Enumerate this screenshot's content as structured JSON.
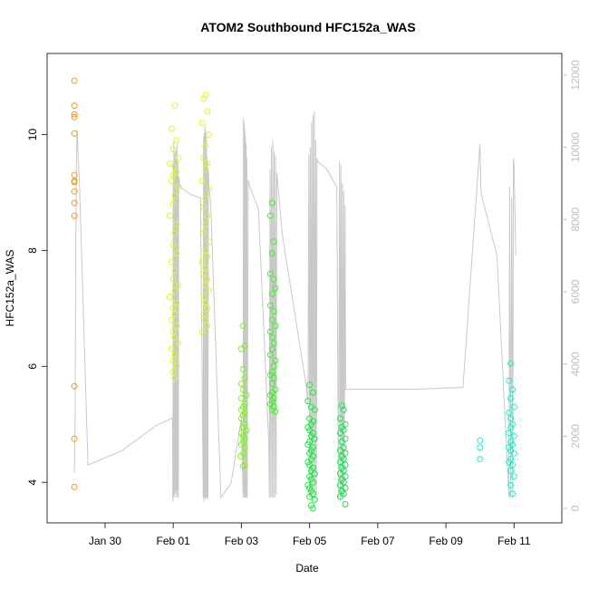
{
  "chart_data": {
    "type": "scatter",
    "title": "ATOM2 Southbound HFC152a_WAS",
    "xlabel": "Date",
    "ylabel": "HFC152a_WAS",
    "x_ticks": [
      "Jan 30",
      "Feb 01",
      "Feb 03",
      "Feb 05",
      "Feb 07",
      "Feb 09",
      "Feb 11"
    ],
    "x_tick_days": [
      30,
      32,
      34,
      36,
      38,
      40,
      42
    ],
    "xlim_days": [
      28.3,
      43.4
    ],
    "y_ticks": [
      "4",
      "6",
      "8",
      "10"
    ],
    "y_tick_values": [
      4,
      6,
      8,
      10
    ],
    "ylim": [
      3.3,
      11.4
    ],
    "y2_ticks": [
      "0",
      "2000",
      "4000",
      "6000",
      "8000",
      "10000",
      "12000"
    ],
    "y2_tick_values": [
      0,
      2000,
      4000,
      6000,
      8000,
      10000,
      12000
    ],
    "y2lim": [
      -400,
      12600
    ],
    "grid": false,
    "colors": {
      "altitude_line": "#c8c8c8",
      "axis": "#333333",
      "right_axis": "#c0c0c0"
    },
    "series": [
      {
        "color": "#f39a1e",
        "x": [
          29.1,
          29.1,
          29.1,
          29.1,
          29.1,
          29.1,
          29.1,
          29.1,
          29.1,
          29.1,
          29.1,
          29.1,
          29.1,
          29.1
        ],
        "y": [
          10.93,
          10.5,
          10.35,
          10.3,
          10.02,
          9.3,
          9.2,
          9.18,
          9.02,
          8.82,
          8.6,
          5.66,
          4.75,
          3.92
        ]
      },
      {
        "color": "#e3f526",
        "x": [
          32.05,
          31.95,
          32.1,
          32.0,
          32.15,
          31.9,
          32.05,
          32.1,
          32.0,
          31.95,
          32.15,
          32.05,
          32.0,
          31.9,
          32.1,
          32.05,
          32.0,
          32.1,
          31.95,
          32.05,
          32.0,
          32.15,
          32.05,
          31.9,
          32.1,
          32.0,
          32.05,
          31.95,
          32.1,
          32.0,
          32.05,
          32.15,
          31.95,
          32.05,
          32.0,
          32.1,
          32.0,
          32.05,
          32.95,
          32.9,
          33.0,
          32.85,
          33.05,
          32.95,
          32.9,
          33.0,
          32.95,
          32.85,
          33.05,
          32.95,
          32.9,
          33.0,
          32.95,
          32.9,
          33.05,
          32.95,
          33.0,
          32.85,
          32.95,
          32.9,
          33.0,
          32.95,
          33.05,
          32.9,
          32.95,
          33.0,
          32.9,
          32.95,
          33.0,
          32.85
        ],
        "y": [
          10.5,
          10.1,
          9.9,
          9.75,
          9.6,
          9.5,
          9.45,
          9.35,
          9.3,
          9.2,
          9.1,
          8.95,
          8.8,
          8.6,
          8.45,
          8.3,
          8.1,
          7.95,
          7.8,
          7.65,
          7.5,
          7.4,
          7.3,
          7.2,
          7.1,
          7.0,
          6.9,
          6.8,
          6.7,
          6.6,
          6.5,
          6.4,
          6.3,
          6.2,
          6.1,
          6.0,
          5.9,
          5.8,
          10.68,
          10.62,
          10.4,
          10.2,
          10.0,
          9.8,
          9.6,
          9.5,
          9.4,
          9.2,
          9.05,
          8.9,
          8.75,
          8.6,
          8.45,
          8.3,
          8.15,
          8.0,
          7.9,
          7.8,
          7.7,
          7.6,
          7.5,
          7.4,
          7.3,
          7.2,
          7.1,
          7.0,
          6.9,
          6.8,
          6.7,
          6.6
        ]
      },
      {
        "color": "#7cf51e",
        "x": [
          34.05,
          34.1,
          34.0,
          34.05,
          34.1,
          34.0,
          34.05,
          34.15,
          34.0,
          34.1,
          34.05,
          34.0,
          34.1,
          34.05,
          34.0,
          34.1,
          34.05,
          34.15,
          34.0,
          34.05,
          34.1,
          34.05,
          34.0,
          34.1,
          34.05,
          33.98,
          34.1,
          34.05
        ],
        "y": [
          6.7,
          6.35,
          6.3,
          5.95,
          5.8,
          5.7,
          5.6,
          5.5,
          5.45,
          5.35,
          5.3,
          5.25,
          5.2,
          5.15,
          5.1,
          5.0,
          4.95,
          4.9,
          4.85,
          4.8,
          4.75,
          4.7,
          4.65,
          4.6,
          4.5,
          4.45,
          4.3,
          4.28
        ]
      },
      {
        "color": "#41f22a",
        "x": [
          34.9,
          34.85,
          34.95,
          34.9,
          34.85,
          34.95,
          35.0,
          34.9,
          34.85,
          34.95,
          34.9,
          35.0,
          34.85,
          34.9,
          34.95,
          34.9,
          34.85,
          35.0,
          34.95,
          34.9,
          34.85,
          34.95,
          34.9,
          35.0,
          34.9,
          34.85,
          34.95,
          34.9,
          34.85,
          34.95,
          34.9,
          35.0
        ],
        "y": [
          8.82,
          8.6,
          8.15,
          7.95,
          7.6,
          7.5,
          7.35,
          7.25,
          7.05,
          6.95,
          6.8,
          6.7,
          6.6,
          6.5,
          6.4,
          6.3,
          6.2,
          6.1,
          6.0,
          5.9,
          5.85,
          5.8,
          5.7,
          5.6,
          5.55,
          5.5,
          5.45,
          5.4,
          5.35,
          5.3,
          5.25,
          5.22
        ]
      },
      {
        "color": "#1fe544",
        "x": [
          36.0,
          36.1,
          35.95,
          36.05,
          36.15,
          36.0,
          36.1,
          36.05,
          35.95,
          36.0,
          36.1,
          36.05,
          36.15,
          36.0,
          35.95,
          36.1,
          36.05,
          36.0,
          36.1,
          36.05,
          35.95,
          36.0,
          36.1,
          36.05,
          36.15,
          36.0,
          36.05,
          36.1,
          35.95,
          36.0,
          36.05,
          36.1,
          36.0,
          36.15,
          36.05,
          36.1
        ],
        "y": [
          5.68,
          5.55,
          5.4,
          5.3,
          5.25,
          5.1,
          5.05,
          5.0,
          4.95,
          4.9,
          4.85,
          4.8,
          4.75,
          4.7,
          4.65,
          4.6,
          4.55,
          4.5,
          4.45,
          4.4,
          4.35,
          4.3,
          4.25,
          4.2,
          4.15,
          4.1,
          4.05,
          4.0,
          3.95,
          3.9,
          3.85,
          3.8,
          3.75,
          3.7,
          3.6,
          3.55
        ]
      },
      {
        "color": "#1fe057",
        "x": [
          36.95,
          37.0,
          36.9,
          37.05,
          36.95,
          37.0,
          36.9,
          37.05,
          36.95,
          37.0,
          36.9,
          37.05,
          36.95,
          37.0,
          36.9,
          37.05,
          36.95,
          37.0,
          36.9,
          37.05,
          36.95,
          37.0,
          36.9,
          37.05,
          36.95,
          37.0,
          36.9,
          37.05
        ],
        "y": [
          5.32,
          5.25,
          5.1,
          5.0,
          4.95,
          4.9,
          4.85,
          4.75,
          4.7,
          4.6,
          4.55,
          4.5,
          4.45,
          4.4,
          4.35,
          4.3,
          4.25,
          4.2,
          4.15,
          4.1,
          4.05,
          4.0,
          3.95,
          3.9,
          3.85,
          3.8,
          3.75,
          3.62
        ]
      },
      {
        "color": "#23ecc6",
        "x": [
          41.0,
          41.0,
          41.0,
          41.9,
          41.85,
          41.95,
          41.9,
          42.0,
          41.85,
          41.9,
          41.95,
          41.9,
          41.85,
          42.0,
          41.9,
          41.95,
          41.85,
          41.9,
          42.0,
          41.9,
          41.85,
          41.95,
          41.9,
          42.0,
          41.9,
          41.95
        ],
        "y": [
          4.72,
          4.6,
          4.4,
          6.05,
          5.75,
          5.6,
          5.45,
          5.3,
          5.2,
          5.1,
          5.0,
          4.95,
          4.85,
          4.8,
          4.7,
          4.65,
          4.6,
          4.55,
          4.5,
          4.4,
          4.35,
          4.3,
          4.2,
          4.1,
          3.95,
          3.8
        ]
      }
    ],
    "altitude_line": {
      "x": [
        29.1,
        29.12,
        29.14,
        29.16,
        29.18,
        29.2,
        29.25,
        29.5,
        30.5,
        31.5,
        31.98,
        31.99,
        32.0,
        32.01,
        32.02,
        32.03,
        32.04,
        32.05,
        32.06,
        32.07,
        32.08,
        32.09,
        32.1,
        32.11,
        32.12,
        32.13,
        32.14,
        32.15,
        32.16,
        32.2,
        32.5,
        32.8,
        32.88,
        32.89,
        32.9,
        32.91,
        32.92,
        32.93,
        32.94,
        32.95,
        32.96,
        32.97,
        32.98,
        32.99,
        33.0,
        33.01,
        33.02,
        33.03,
        33.05,
        33.1,
        33.4,
        33.7,
        34.0,
        34.05,
        34.06,
        34.07,
        34.08,
        34.09,
        34.1,
        34.11,
        34.12,
        34.13,
        34.14,
        34.15,
        34.16,
        34.17,
        34.2,
        34.25,
        34.5,
        34.8,
        34.82,
        34.84,
        34.86,
        34.88,
        34.9,
        34.92,
        34.94,
        34.96,
        34.98,
        35.0,
        35.02,
        35.04,
        35.2,
        35.5,
        35.9,
        35.95,
        35.98,
        36.0,
        36.02,
        36.04,
        36.06,
        36.08,
        36.1,
        36.12,
        36.14,
        36.16,
        36.18,
        36.2,
        36.22,
        36.25,
        36.5,
        36.8,
        36.85,
        36.88,
        36.9,
        36.92,
        36.94,
        36.96,
        36.98,
        37.0,
        37.02,
        37.04,
        37.06,
        37.1,
        37.5,
        39.0,
        40.5,
        41.0,
        41.02,
        41.04,
        41.5,
        41.85,
        41.87,
        41.9,
        41.93,
        41.96,
        41.98,
        42.0,
        42.02,
        42.05
      ],
      "y": [
        1000,
        2000,
        7000,
        9500,
        10500,
        10000,
        9000,
        1200,
        1600,
        2300,
        2500,
        200,
        9500,
        300,
        10200,
        400,
        9800,
        300,
        9900,
        500,
        10000,
        400,
        9700,
        300,
        10100,
        500,
        9600,
        300,
        9200,
        8900,
        8700,
        8600,
        300,
        10300,
        200,
        10400,
        300,
        10600,
        250,
        10500,
        300,
        10300,
        300,
        9800,
        250,
        9600,
        300,
        9400,
        8900,
        8400,
        300,
        700,
        2500,
        300,
        10800,
        400,
        10700,
        300,
        10500,
        300,
        10300,
        300,
        10100,
        300,
        9700,
        300,
        9100,
        8900,
        8300,
        1900,
        300,
        9400,
        300,
        10000,
        300,
        10200,
        300,
        9900,
        300,
        9800,
        400,
        9300,
        7600,
        5800,
        3400,
        2900,
        9800,
        300,
        10000,
        300,
        10700,
        400,
        10900,
        500,
        11000,
        300,
        10200,
        400,
        9700,
        9600,
        9400,
        8900,
        300,
        9600,
        200,
        9500,
        300,
        9000,
        300,
        8800,
        300,
        8400,
        3300,
        3300,
        3300,
        3300,
        3350,
        10100,
        9000,
        8700,
        7000,
        300,
        8900,
        300,
        8600,
        300,
        9700,
        9500,
        8500,
        7000
      ]
    }
  }
}
